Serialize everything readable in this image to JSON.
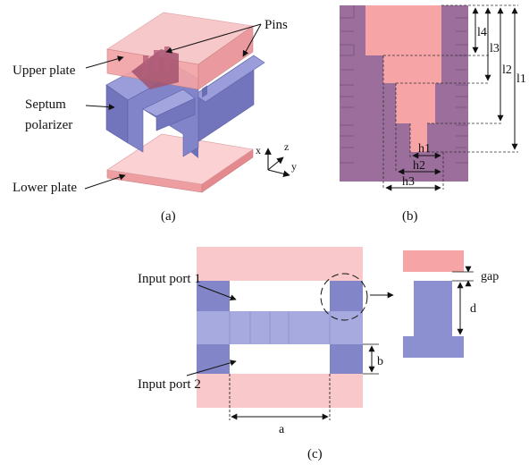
{
  "colors": {
    "plate_fill": "#f2a3a6",
    "plate_light": "#fbd1d3",
    "septum_fill": "#8c8fd0",
    "septum_dark": "#6d70b6",
    "combo_fill": "#9b6e9c",
    "combo_dark": "#7e5785"
  },
  "panel_a": {
    "pins_label": "Pins",
    "upper_plate_label": "Upper plate",
    "septum_label_line1": "Septum",
    "septum_label_line2": "polarizer",
    "lower_plate_label": "Lower plate",
    "axis_x": "x",
    "axis_z": "z",
    "axis_y": "y",
    "caption": "(a)"
  },
  "panel_b": {
    "l1": "l1",
    "l2": "l2",
    "l3": "l3",
    "l4": "l4",
    "h1": "h1",
    "h2": "h2",
    "h3": "h3",
    "caption": "(b)"
  },
  "panel_c": {
    "input_port_1": "Input port 1",
    "input_port_2": "Input port 2",
    "dim_a": "a",
    "dim_b": "b",
    "dim_gap": "gap",
    "dim_d": "d",
    "caption": "(c)"
  }
}
